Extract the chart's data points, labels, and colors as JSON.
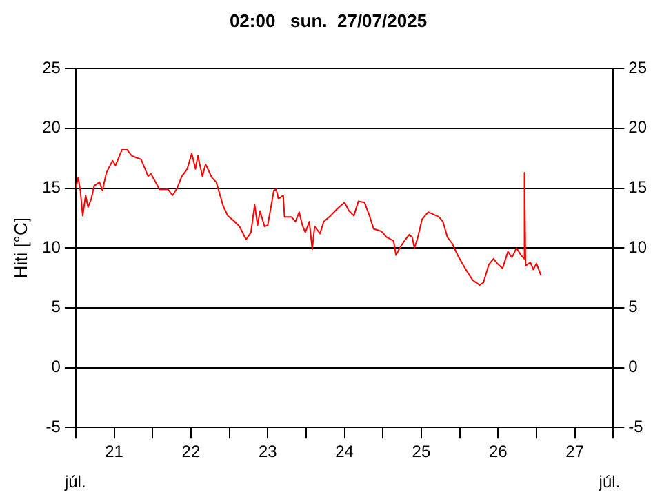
{
  "chart_data": {
    "type": "line",
    "title": "02:00   sun.  27/07/2025",
    "ylabel": "Hiti [°C]",
    "annotations": [
      "júl.",
      "júl."
    ],
    "xlim": [
      "2025-07-21T00:00",
      "2025-07-28T00:00"
    ],
    "xticks": [
      {
        "value": "2025-07-21T00:00",
        "label": null
      },
      {
        "value": "2025-07-21T12:00",
        "label": "21"
      },
      {
        "value": "2025-07-22T00:00",
        "label": null
      },
      {
        "value": "2025-07-22T12:00",
        "label": "22"
      },
      {
        "value": "2025-07-23T00:00",
        "label": null
      },
      {
        "value": "2025-07-23T12:00",
        "label": "23"
      },
      {
        "value": "2025-07-24T00:00",
        "label": null
      },
      {
        "value": "2025-07-24T12:00",
        "label": "24"
      },
      {
        "value": "2025-07-25T00:00",
        "label": null
      },
      {
        "value": "2025-07-25T12:00",
        "label": "25"
      },
      {
        "value": "2025-07-26T00:00",
        "label": null
      },
      {
        "value": "2025-07-26T12:00",
        "label": "26"
      },
      {
        "value": "2025-07-27T00:00",
        "label": null
      },
      {
        "value": "2025-07-27T12:00",
        "label": "27"
      },
      {
        "value": "2025-07-28T00:00",
        "label": null
      }
    ],
    "ylim": [
      -5,
      25
    ],
    "yticks": [
      -5,
      0,
      5,
      10,
      15,
      20,
      25
    ],
    "y2lim": [
      -5,
      25
    ],
    "y2ticks": [
      -5,
      0,
      5,
      10,
      15,
      20,
      25
    ],
    "grid": true,
    "legend": false,
    "marker": "none",
    "line_style": "solid",
    "series": [
      {
        "color": "#ff0000",
        "x": [
          "2025-07-21T00:00",
          "2025-07-21T00:45",
          "2025-07-21T01:25",
          "2025-07-21T02:10",
          "2025-07-21T03:05",
          "2025-07-21T03:50",
          "2025-07-21T04:50",
          "2025-07-21T05:45",
          "2025-07-21T07:25",
          "2025-07-21T08:20",
          "2025-07-21T09:35",
          "2025-07-21T11:30",
          "2025-07-21T12:25",
          "2025-07-21T14:25",
          "2025-07-21T16:05",
          "2025-07-21T17:30",
          "2025-07-21T20:25",
          "2025-07-21T22:35",
          "2025-07-21T23:30",
          "2025-07-22T02:10",
          "2025-07-22T04:50",
          "2025-07-22T06:15",
          "2025-07-22T07:40",
          "2025-07-22T09:10",
          "2025-07-22T10:50",
          "2025-07-22T12:15",
          "2025-07-22T13:25",
          "2025-07-22T14:10",
          "2025-07-22T15:35",
          "2025-07-22T16:35",
          "2025-07-22T18:30",
          "2025-07-22T19:55",
          "2025-07-22T22:05",
          "2025-07-22T23:30",
          "2025-07-23T01:40",
          "2025-07-23T03:10",
          "2025-07-23T05:15",
          "2025-07-23T06:45",
          "2025-07-23T07:55",
          "2025-07-23T08:50",
          "2025-07-23T09:35",
          "2025-07-23T11:00",
          "2025-07-23T12:00",
          "2025-07-23T13:55",
          "2025-07-23T14:40",
          "2025-07-23T15:20",
          "2025-07-23T16:50",
          "2025-07-23T17:15",
          "2025-07-23T19:25",
          "2025-07-23T20:40",
          "2025-07-23T21:50",
          "2025-07-23T22:50",
          "2025-07-23T23:45",
          "2025-07-24T01:00",
          "2025-07-24T01:55",
          "2025-07-24T02:40",
          "2025-07-24T04:20",
          "2025-07-24T05:30",
          "2025-07-24T07:40",
          "2025-07-24T09:50",
          "2025-07-24T12:00",
          "2025-07-24T13:25",
          "2025-07-24T14:55",
          "2025-07-24T16:20",
          "2025-07-24T18:15",
          "2025-07-24T19:55",
          "2025-07-24T21:05",
          "2025-07-24T23:30",
          "2025-07-25T01:10",
          "2025-07-25T03:20",
          "2025-07-25T04:05",
          "2025-07-25T05:15",
          "2025-07-25T06:45",
          "2025-07-25T08:10",
          "2025-07-25T09:10",
          "2025-07-25T09:50",
          "2025-07-25T10:50",
          "2025-07-25T12:15",
          "2025-07-25T14:10",
          "2025-07-25T15:50",
          "2025-07-25T17:30",
          "2025-07-25T18:45",
          "2025-07-25T20:10",
          "2025-07-25T21:35",
          "2025-07-25T23:45",
          "2025-07-26T01:55",
          "2025-07-26T04:05",
          "2025-07-26T06:15",
          "2025-07-26T07:25",
          "2025-07-26T09:05",
          "2025-07-26T10:35",
          "2025-07-26T11:45",
          "2025-07-26T13:25",
          "2025-07-26T15:05",
          "2025-07-26T16:20",
          "2025-07-26T17:45",
          "2025-07-26T19:10",
          "2025-07-26T20:10",
          "2025-07-26T20:15",
          "2025-07-26T20:35",
          "2025-07-26T22:05",
          "2025-07-26T23:00",
          "2025-07-27T00:00",
          "2025-07-27T01:25"
        ],
        "values": [
          15.0,
          15.9,
          14.8,
          12.7,
          14.4,
          13.4,
          14.1,
          15.2,
          15.5,
          14.8,
          16.3,
          17.3,
          16.9,
          18.2,
          18.2,
          17.7,
          17.4,
          16.0,
          16.2,
          14.9,
          14.9,
          14.4,
          15.0,
          16.0,
          16.6,
          17.9,
          16.6,
          17.7,
          16.0,
          17.0,
          15.9,
          15.5,
          13.5,
          12.7,
          12.2,
          11.8,
          10.7,
          11.3,
          13.6,
          11.9,
          13.1,
          11.8,
          11.9,
          14.8,
          14.9,
          14.1,
          14.4,
          12.6,
          12.6,
          12.2,
          13.0,
          11.9,
          11.3,
          12.2,
          9.9,
          11.8,
          11.2,
          12.2,
          12.7,
          13.3,
          13.8,
          13.1,
          12.7,
          13.9,
          13.8,
          12.6,
          11.6,
          11.4,
          10.9,
          10.6,
          9.4,
          10.0,
          10.6,
          11.1,
          10.9,
          10.0,
          10.8,
          12.4,
          13.0,
          12.8,
          12.6,
          12.2,
          10.9,
          10.4,
          9.2,
          8.2,
          7.3,
          6.9,
          7.1,
          8.6,
          9.1,
          8.7,
          8.3,
          9.7,
          9.2,
          10.0,
          9.4,
          9.1,
          16.3,
          8.5,
          8.8,
          8.2,
          8.7,
          7.7
        ]
      }
    ]
  }
}
